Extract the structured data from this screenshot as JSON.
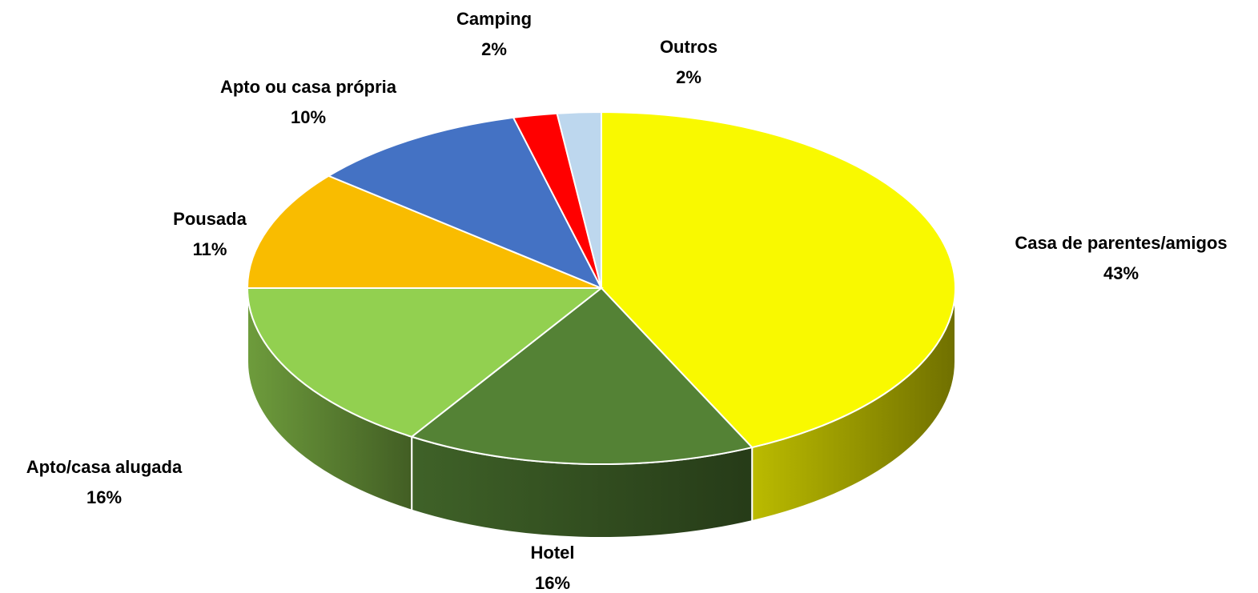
{
  "chart_data": {
    "type": "pie3d",
    "categories": [
      "Casa de parentes/amigos",
      "Hotel",
      "Apto/casa alugada",
      "Pousada",
      "Apto ou casa própria",
      "Camping",
      "Outros"
    ],
    "values": [
      43,
      16,
      16,
      11,
      10,
      2,
      2
    ],
    "value_labels": [
      "43%",
      "16%",
      "16%",
      "11%",
      "10%",
      "2%",
      "2%"
    ],
    "colors": [
      "#f9f900",
      "#548235",
      "#92d050",
      "#f9bc00",
      "#4472c4",
      "#ff0000",
      "#bdd7ee"
    ]
  }
}
